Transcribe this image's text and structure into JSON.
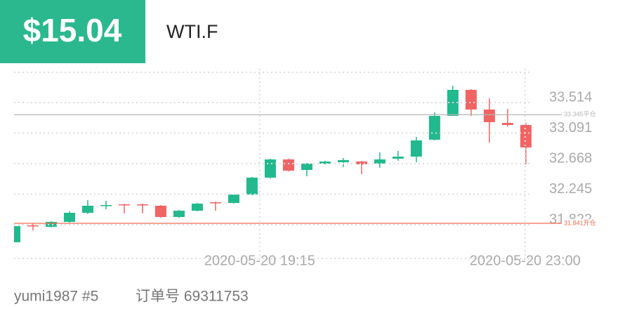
{
  "header": {
    "price": "$15.04",
    "symbol": "WTI.F"
  },
  "footer": {
    "user": "yumi1987 #5",
    "order": "订单号 69311753"
  },
  "chart_data": {
    "type": "candlestick",
    "categories": [
      null,
      null,
      null,
      null,
      null,
      null,
      null,
      null,
      null,
      null,
      null,
      null,
      null,
      null,
      null,
      null,
      null,
      null,
      null,
      null,
      null,
      null,
      null,
      null,
      null,
      null,
      null,
      null,
      null
    ],
    "open": [
      31.579,
      31.813,
      31.793,
      31.861,
      31.987,
      32.085,
      32.104,
      32.104,
      32.085,
      31.929,
      32.016,
      32.133,
      32.123,
      32.24,
      32.474,
      32.726,
      32.58,
      32.668,
      32.687,
      32.697,
      32.668,
      32.736,
      32.765,
      32.999,
      33.329,
      33.689,
      33.417,
      33.232,
      33.203
    ],
    "high": [
      31.803,
      31.841,
      31.871,
      32.007,
      32.162,
      32.153,
      32.114,
      32.114,
      32.094,
      32.026,
      32.123,
      32.143,
      32.25,
      32.484,
      32.736,
      32.736,
      32.678,
      32.707,
      32.746,
      32.707,
      32.824,
      32.843,
      33.038,
      33.378,
      33.747,
      33.699,
      33.572,
      33.426,
      33.232
    ],
    "low": [
      31.579,
      31.744,
      31.784,
      31.851,
      31.968,
      32.036,
      31.978,
      31.978,
      31.919,
      31.919,
      32.007,
      32.016,
      32.114,
      32.23,
      32.464,
      32.561,
      32.493,
      32.658,
      32.619,
      32.522,
      32.61,
      32.707,
      32.687,
      32.989,
      33.329,
      33.329,
      32.96,
      33.183,
      32.658
    ],
    "close": [
      31.803,
      31.803,
      31.861,
      31.987,
      32.085,
      32.094,
      32.094,
      32.094,
      31.929,
      32.016,
      32.114,
      32.123,
      32.24,
      32.474,
      32.726,
      32.571,
      32.668,
      32.697,
      32.717,
      32.658,
      32.726,
      32.765,
      32.989,
      33.329,
      33.689,
      33.417,
      33.242,
      33.203,
      32.892
    ],
    "up_color": "#21b98d",
    "down_color": "#f06464",
    "ylim": [
      31.355,
      33.932
    ],
    "yticks": [
      31.822,
      32.245,
      32.668,
      33.091,
      33.514
    ],
    "xlim": [
      0,
      28.2
    ],
    "xticks": [
      {
        "value": 13.42,
        "label": "2020-05-20 19:15"
      },
      {
        "value": 27.96,
        "label": "2020-05-20 23:00"
      }
    ],
    "grid": true,
    "reference_lines": [
      {
        "value": 33.345,
        "label": "33.345平仓",
        "color": "#b5b5b5"
      },
      {
        "value": 31.841,
        "label": "31.841开仓",
        "color": "#f26d50"
      }
    ]
  }
}
